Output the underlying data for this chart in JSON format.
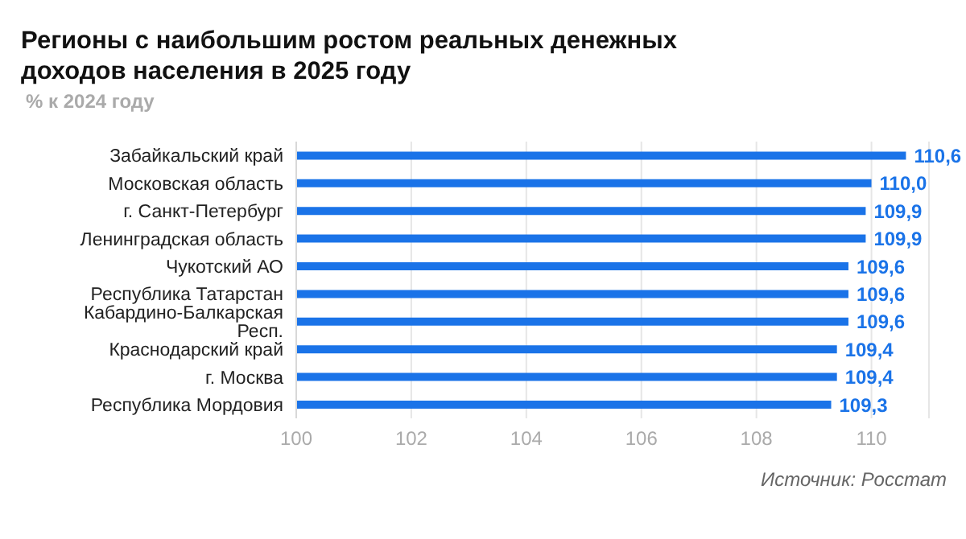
{
  "chart_data": {
    "type": "bar",
    "orientation": "horizontal",
    "title": "Регионы с наибольшим ростом реальных денежных доходов населения в 2025 году",
    "subtitle": "% к 2024 году",
    "categories": [
      "Забайкальский край",
      "Московская область",
      "г. Санкт-Петербург",
      "Ленинградская область",
      "Чукотский АО",
      "Республика Татарстан",
      "Кабардино-Балкарская Респ.",
      "Краснодарский край",
      "г. Москва",
      "Республика Мордовия"
    ],
    "values": [
      110.6,
      110.0,
      109.9,
      109.9,
      109.6,
      109.6,
      109.6,
      109.4,
      109.4,
      109.3
    ],
    "value_labels": [
      "110,6",
      "110,0",
      "109,9",
      "109,9",
      "109,6",
      "109,6",
      "109,6",
      "109,4",
      "109,4",
      "109,3"
    ],
    "color": "#1a73e8",
    "xlim": [
      100,
      111
    ],
    "xticks": [
      100,
      102,
      104,
      106,
      108,
      110
    ],
    "grid": "x",
    "legend": false,
    "annotations": [
      "Источник: Росстат"
    ]
  }
}
